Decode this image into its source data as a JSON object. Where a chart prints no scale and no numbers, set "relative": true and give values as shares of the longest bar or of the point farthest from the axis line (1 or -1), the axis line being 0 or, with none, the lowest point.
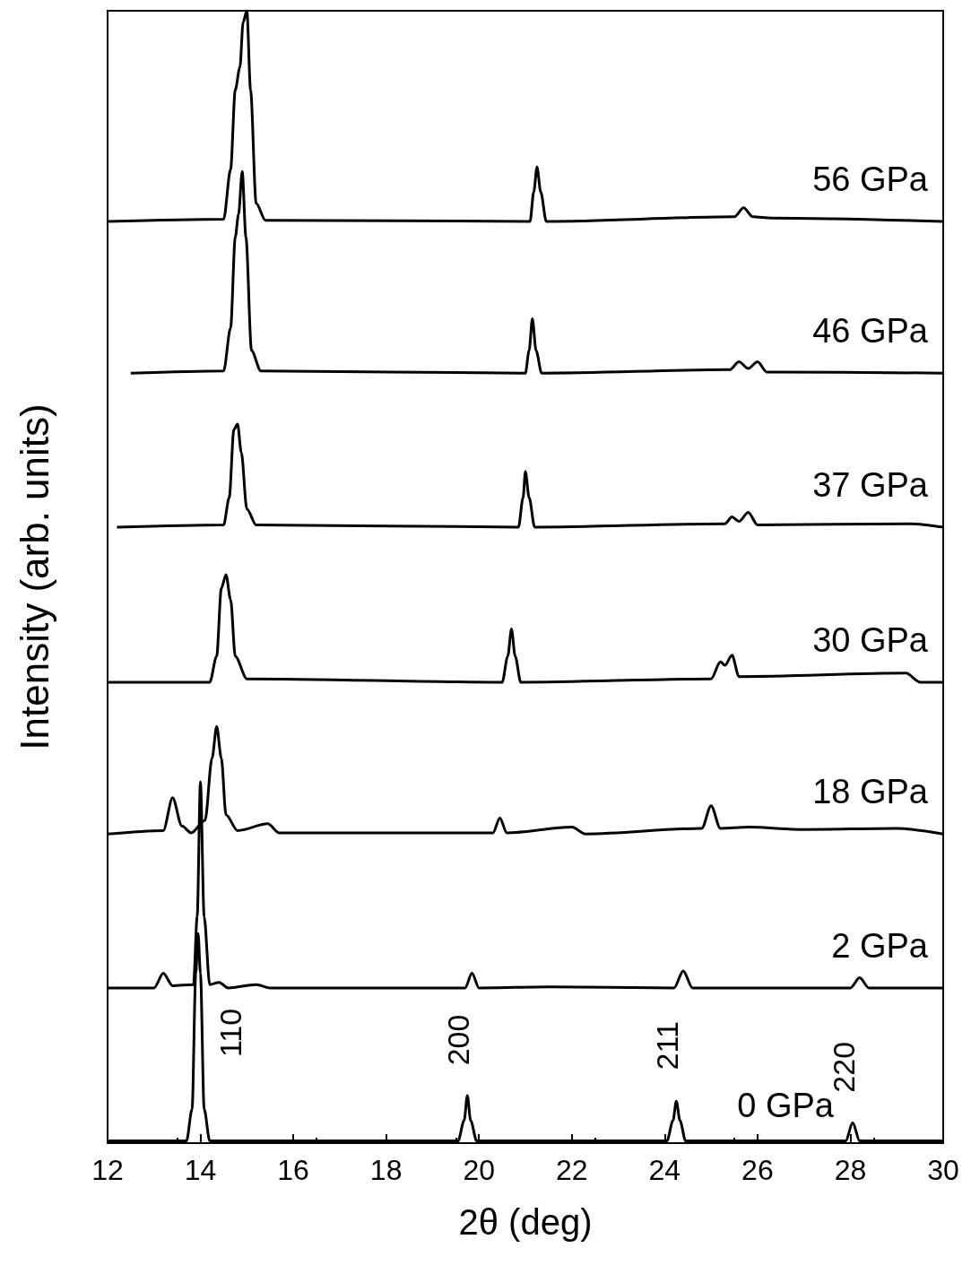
{
  "chart_data": {
    "type": "line",
    "relative": true,
    "xlabel": "2θ (deg)",
    "ylabel": "Intensity (arb. units)",
    "xlim": [
      12,
      30
    ],
    "xticks": [
      12,
      14,
      16,
      18,
      20,
      22,
      24,
      26,
      28,
      30
    ],
    "grid": false,
    "legend": false,
    "tick_labels": "x",
    "marker": "none",
    "line_style": "solid",
    "annotations": [
      "110",
      "200",
      "211",
      "220"
    ],
    "series": [
      {
        "name": "0 GPa",
        "color": "#000000",
        "x": [
          12,
          13.7,
          13.82,
          13.9,
          13.95,
          14.0,
          14.08,
          14.2,
          19.55,
          19.68,
          19.75,
          19.82,
          19.95,
          24.05,
          24.18,
          24.25,
          24.33,
          24.45,
          27.9,
          28.05,
          28.2,
          30
        ],
        "values": [
          0.002,
          0.002,
          0.03,
          0.15,
          0.185,
          0.15,
          0.03,
          0.002,
          0.002,
          0.02,
          0.042,
          0.02,
          0.002,
          0.002,
          0.02,
          0.037,
          0.02,
          0.002,
          0.002,
          0.018,
          0.002,
          0.002
        ]
      },
      {
        "name": "2 GPa",
        "color": "#000000",
        "x": [
          12,
          13.0,
          13.2,
          13.4,
          13.85,
          13.93,
          14.0,
          14.08,
          14.2,
          14.4,
          14.6,
          15.2,
          15.5,
          19.7,
          19.85,
          20.0,
          21.5,
          24.2,
          24.4,
          24.6,
          28.0,
          28.2,
          28.4,
          30
        ],
        "values": [
          0.137,
          0.137,
          0.15,
          0.139,
          0.14,
          0.2,
          0.319,
          0.2,
          0.14,
          0.142,
          0.137,
          0.14,
          0.137,
          0.137,
          0.15,
          0.137,
          0.138,
          0.137,
          0.152,
          0.137,
          0.137,
          0.146,
          0.137,
          0.137
        ]
      },
      {
        "name": "18 GPa",
        "color": "#000000",
        "x": [
          12,
          13.2,
          13.4,
          13.6,
          13.8,
          14.1,
          14.25,
          14.35,
          14.45,
          14.55,
          14.8,
          15.45,
          15.7,
          20.3,
          20.45,
          20.6,
          22.0,
          22.3,
          24.8,
          25.0,
          25.2,
          25.8,
          27.0,
          29.0,
          30
        ],
        "values": [
          0.273,
          0.276,
          0.305,
          0.28,
          0.274,
          0.285,
          0.34,
          0.368,
          0.34,
          0.29,
          0.276,
          0.282,
          0.274,
          0.274,
          0.287,
          0.274,
          0.279,
          0.273,
          0.278,
          0.298,
          0.278,
          0.279,
          0.277,
          0.278,
          0.273
        ]
      },
      {
        "name": "30 GPa",
        "color": "#000000",
        "x": [
          12,
          14.2,
          14.35,
          14.45,
          14.55,
          14.65,
          14.75,
          15.0,
          20.5,
          20.62,
          20.7,
          20.78,
          20.9,
          25.0,
          25.2,
          25.3,
          25.45,
          25.6,
          29.2,
          29.5,
          30
        ],
        "values": [
          0.407,
          0.407,
          0.43,
          0.49,
          0.502,
          0.48,
          0.43,
          0.41,
          0.407,
          0.43,
          0.454,
          0.43,
          0.407,
          0.41,
          0.425,
          0.422,
          0.431,
          0.412,
          0.415,
          0.407,
          0.407
        ]
      },
      {
        "name": "37 GPa",
        "color": "#000000",
        "x": [
          12.2,
          14.5,
          14.62,
          14.72,
          14.8,
          14.88,
          15.0,
          15.2,
          20.85,
          20.95,
          21.0,
          21.08,
          21.2,
          25.3,
          25.45,
          25.6,
          25.8,
          26.0,
          29.3,
          30
        ],
        "values": [
          0.544,
          0.546,
          0.57,
          0.63,
          0.635,
          0.61,
          0.56,
          0.546,
          0.544,
          0.57,
          0.593,
          0.57,
          0.544,
          0.547,
          0.553,
          0.549,
          0.557,
          0.546,
          0.547,
          0.544
        ]
      },
      {
        "name": "46 GPa",
        "color": "#000000",
        "x": [
          12.5,
          14.5,
          14.65,
          14.75,
          14.82,
          14.9,
          14.98,
          15.1,
          15.3,
          21.0,
          21.08,
          21.15,
          21.23,
          21.35,
          25.4,
          25.6,
          25.8,
          26.0,
          26.2,
          30
        ],
        "values": [
          0.68,
          0.682,
          0.72,
          0.8,
          0.82,
          0.858,
          0.8,
          0.7,
          0.682,
          0.68,
          0.7,
          0.728,
          0.7,
          0.68,
          0.683,
          0.69,
          0.684,
          0.69,
          0.681,
          0.68
        ]
      },
      {
        "name": "56 GPa",
        "color": "#000000",
        "x": [
          12,
          14.5,
          14.65,
          14.75,
          14.85,
          14.92,
          15.0,
          15.08,
          15.2,
          15.4,
          21.1,
          21.18,
          21.25,
          21.33,
          21.45,
          25.5,
          25.7,
          25.9,
          26.3,
          30
        ],
        "values": [
          0.814,
          0.816,
          0.86,
          0.93,
          0.95,
          0.99,
          1.0,
          0.93,
          0.83,
          0.815,
          0.814,
          0.84,
          0.862,
          0.84,
          0.814,
          0.818,
          0.826,
          0.818,
          0.817,
          0.814
        ]
      }
    ]
  }
}
